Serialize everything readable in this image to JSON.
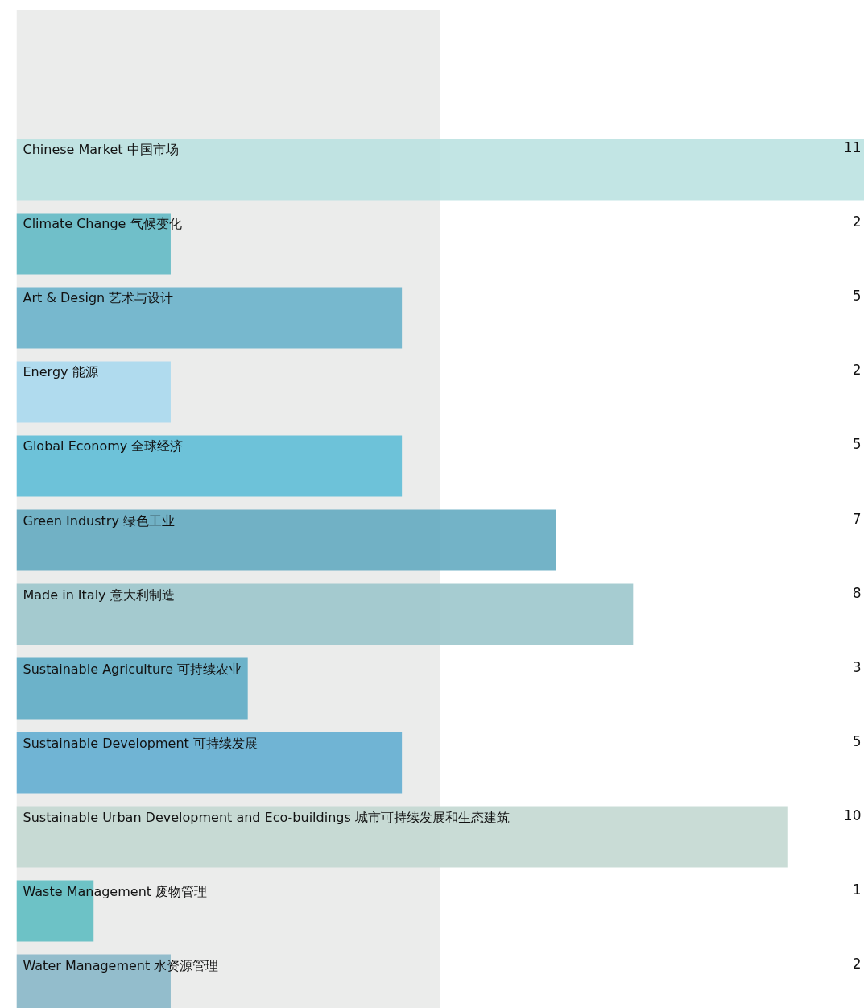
{
  "chart_data": {
    "type": "bar",
    "orientation": "horizontal",
    "categories": [
      "Chinese Market 中国市场",
      "Climate Change 气候变化",
      "Art & Design 艺术与设计",
      "Energy  能源",
      "Global Economy 全球经济",
      "Green Industry 绿色工业",
      "Made in Italy 意大利制造",
      "Sustainable Agriculture 可持续农业",
      "Sustainable Development 可持续发展",
      "Sustainable Urban Development and Eco-buildings 城市可持续发展和生态建筑",
      "Waste Management 废物管理",
      "Water Management 水资源管理"
    ],
    "values": [
      11,
      2,
      5,
      2,
      5,
      7,
      8,
      3,
      5,
      10,
      1,
      2
    ],
    "colors": [
      "#b9e1e0",
      "#5fb8c4",
      "#67b1c9",
      "#a7d8ee",
      "#5bbcd6",
      "#60a9bf",
      "#9ac5cb",
      "#5aaac4",
      "#5eacd0",
      "#c2d7d0",
      "#5bbcc0",
      "#86b6c7"
    ],
    "xlim": [
      0,
      11
    ],
    "data_labels": true,
    "bands": [
      {
        "axis": "x",
        "from": 0,
        "to": 5.5,
        "label": null,
        "color": "#ebeceb"
      }
    ],
    "grid": false,
    "tick_labels": false
  }
}
